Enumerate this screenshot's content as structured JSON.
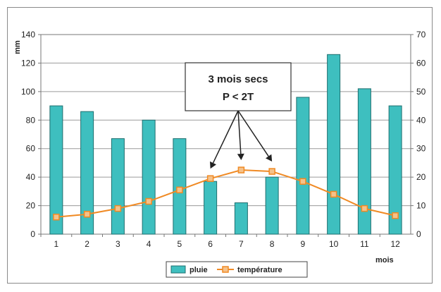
{
  "chart_data": {
    "type": "bar",
    "categories": [
      "1",
      "2",
      "3",
      "4",
      "5",
      "6",
      "7",
      "8",
      "9",
      "10",
      "11",
      "12"
    ],
    "series": [
      {
        "name": "pluie",
        "type": "bar",
        "axis": "left",
        "values": [
          90,
          86,
          67,
          80,
          67,
          37,
          22,
          40,
          96,
          126,
          102,
          90
        ]
      },
      {
        "name": "température",
        "type": "line",
        "axis": "right",
        "values": [
          6,
          7,
          9,
          11.5,
          15.5,
          19.5,
          22.5,
          22,
          18.5,
          14,
          9,
          6.5
        ]
      }
    ],
    "xlabel": "mois",
    "ylabel_left": "mm",
    "ylim_left": [
      0,
      140
    ],
    "yticks_left": [
      0,
      20,
      40,
      60,
      80,
      100,
      120,
      140
    ],
    "ylim_right": [
      0,
      70
    ],
    "yticks_right": [
      0,
      10,
      20,
      30,
      40,
      50,
      60,
      70
    ],
    "grid": true,
    "legend_position": "bottom",
    "annotation": {
      "lines": [
        "3 mois secs",
        "P < 2T"
      ],
      "targets": [
        6,
        7,
        8
      ]
    },
    "colors": {
      "bar": "#3ebfbf",
      "bar_stroke": "#1f6f6f",
      "line": "#f08a24",
      "marker_fill": "#f5c28a"
    }
  }
}
